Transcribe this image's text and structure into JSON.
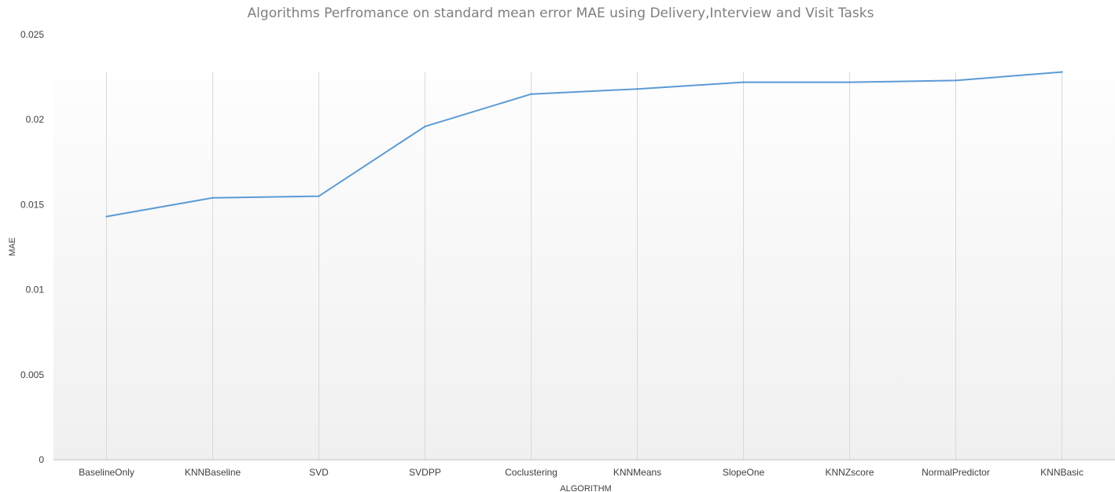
{
  "chart_data": {
    "type": "line",
    "title": "Algorithms Perfromance on standard mean error MAE using Delivery,Interview and Visit Tasks",
    "xlabel": "ALGORITHM",
    "ylabel": "MAE",
    "categories": [
      "BaselineOnly",
      "KNNBaseline",
      "SVD",
      "SVDPP",
      "Coclustering",
      "KNNMeans",
      "SlopeOne",
      "KNNZscore",
      "NormalPredictor",
      "KNNBasic"
    ],
    "series": [
      {
        "values": [
          0.0143,
          0.0154,
          0.0155,
          0.0196,
          0.0215,
          0.0218,
          0.0222,
          0.0222,
          0.0223,
          0.0228
        ]
      }
    ],
    "ylim": [
      0,
      0.025
    ],
    "yticks": [
      "0",
      "0.005",
      "0.01",
      "0.015",
      "0.02",
      "0.025"
    ],
    "grid": "vertical",
    "legend": "none",
    "line_color": "#5b9bd5"
  }
}
